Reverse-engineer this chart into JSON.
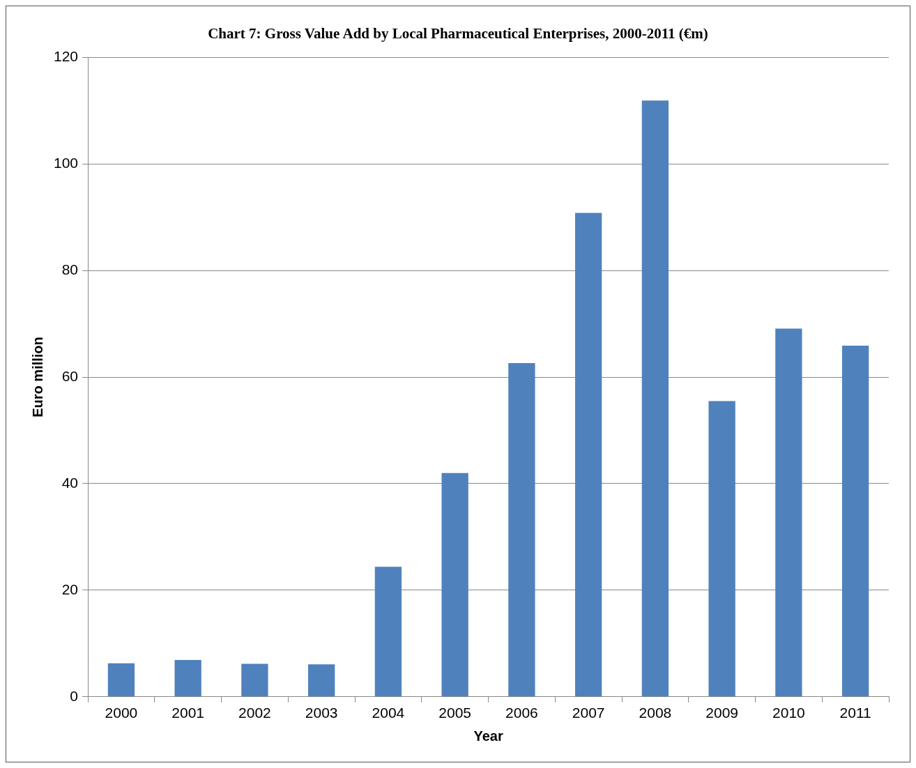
{
  "chart_data": {
    "type": "bar",
    "title": "Chart 7: Gross Value Add by Local Pharmaceutical Enterprises, 2000-2011 (€m)",
    "xlabel": "Year",
    "ylabel": "Euro million",
    "categories": [
      "2000",
      "2001",
      "2002",
      "2003",
      "2004",
      "2005",
      "2006",
      "2007",
      "2008",
      "2009",
      "2010",
      "2011"
    ],
    "values": [
      6.3,
      6.9,
      6.2,
      6.1,
      24.4,
      42.0,
      62.6,
      90.8,
      111.9,
      55.5,
      69.1,
      65.9
    ],
    "color": "#4f81bd",
    "ylim": [
      0,
      120
    ],
    "yticks": [
      0,
      20,
      40,
      60,
      80,
      100,
      120
    ],
    "grid": "y"
  }
}
